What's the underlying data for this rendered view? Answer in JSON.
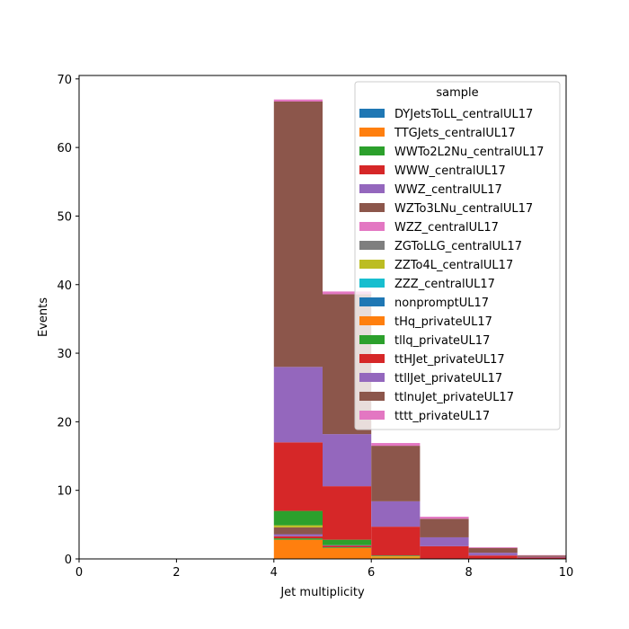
{
  "chart_data": {
    "type": "bar",
    "stacked": true,
    "histogram": true,
    "bin_edges": [
      0,
      1,
      2,
      3,
      4,
      5,
      6,
      7,
      8,
      9,
      10
    ],
    "xlabel": "Jet multiplicity",
    "ylabel": "Events",
    "xlim": [
      0,
      10
    ],
    "ylim": [
      0,
      70.5
    ],
    "xticks": [
      "0",
      "2",
      "4",
      "6",
      "8",
      "10"
    ],
    "yticks": [
      "0",
      "10",
      "20",
      "30",
      "40",
      "50",
      "60",
      "70"
    ],
    "legend": {
      "title": "sample",
      "position": "top-right"
    },
    "grid": false,
    "series": [
      {
        "name": "DYJetsToLL_centralUL17",
        "color": "#1f77b4",
        "values": [
          0,
          0,
          0,
          0,
          0,
          0,
          0,
          0,
          0,
          0
        ]
      },
      {
        "name": "TTGJets_centralUL17",
        "color": "#ff7f0e",
        "values": [
          0,
          0,
          0,
          0,
          2.8,
          1.6,
          0.2,
          0.05,
          0,
          0
        ]
      },
      {
        "name": "WWTo2L2Nu_centralUL17",
        "color": "#2ca02c",
        "values": [
          0,
          0,
          0,
          0,
          0.2,
          0.1,
          0,
          0,
          0,
          0
        ]
      },
      {
        "name": "WWW_centralUL17",
        "color": "#d62728",
        "values": [
          0,
          0,
          0,
          0,
          0.3,
          0.2,
          0,
          0,
          0,
          0
        ]
      },
      {
        "name": "WWZ_centralUL17",
        "color": "#9467bd",
        "values": [
          0,
          0,
          0,
          0,
          0.3,
          0.1,
          0,
          0,
          0,
          0
        ]
      },
      {
        "name": "WZTo3LNu_centralUL17",
        "color": "#8c564b",
        "values": [
          0,
          0,
          0,
          0,
          1.0,
          0,
          0,
          0,
          0,
          0
        ]
      },
      {
        "name": "WZZ_centralUL17",
        "color": "#e377c2",
        "values": [
          0,
          0,
          0,
          0,
          0,
          0,
          0,
          0,
          0,
          0
        ]
      },
      {
        "name": "ZGToLLG_centralUL17",
        "color": "#7f7f7f",
        "values": [
          0,
          0,
          0,
          0,
          0,
          0,
          0,
          0,
          0,
          0
        ]
      },
      {
        "name": "ZZTo4L_centralUL17",
        "color": "#bcbd22",
        "values": [
          0,
          0,
          0,
          0,
          0.3,
          0,
          0.1,
          0,
          0,
          0
        ]
      },
      {
        "name": "ZZZ_centralUL17",
        "color": "#17becf",
        "values": [
          0,
          0,
          0,
          0,
          0,
          0,
          0,
          0,
          0,
          0
        ]
      },
      {
        "name": "nonpromptUL17",
        "color": "#1f77b4",
        "values": [
          0,
          0,
          0,
          0,
          0,
          0,
          0,
          0,
          0,
          0
        ]
      },
      {
        "name": "tHq_privateUL17",
        "color": "#ff7f0e",
        "values": [
          0,
          0,
          0,
          0,
          0,
          0,
          0.1,
          0,
          0,
          0
        ]
      },
      {
        "name": "tllq_privateUL17",
        "color": "#2ca02c",
        "values": [
          0,
          0,
          0,
          0,
          2.1,
          0.8,
          0.1,
          0,
          0,
          0
        ]
      },
      {
        "name": "ttHJet_privateUL17",
        "color": "#d62728",
        "values": [
          0,
          0,
          0,
          0,
          10.0,
          7.8,
          4.2,
          1.8,
          0.5,
          0.2
        ]
      },
      {
        "name": "ttllJet_privateUL17",
        "color": "#9467bd",
        "values": [
          0,
          0,
          0,
          0,
          11.0,
          7.6,
          3.7,
          1.3,
          0.4,
          0.1
        ]
      },
      {
        "name": "ttlnuJet_privateUL17",
        "color": "#8c564b",
        "values": [
          0,
          0,
          0,
          0,
          38.7,
          20.4,
          8.1,
          2.7,
          0.7,
          0.2
        ]
      },
      {
        "name": "tttt_privateUL17",
        "color": "#e377c2",
        "values": [
          0,
          0,
          0,
          0,
          0.3,
          0.4,
          0.4,
          0.3,
          0.1,
          0.05
        ]
      }
    ]
  }
}
